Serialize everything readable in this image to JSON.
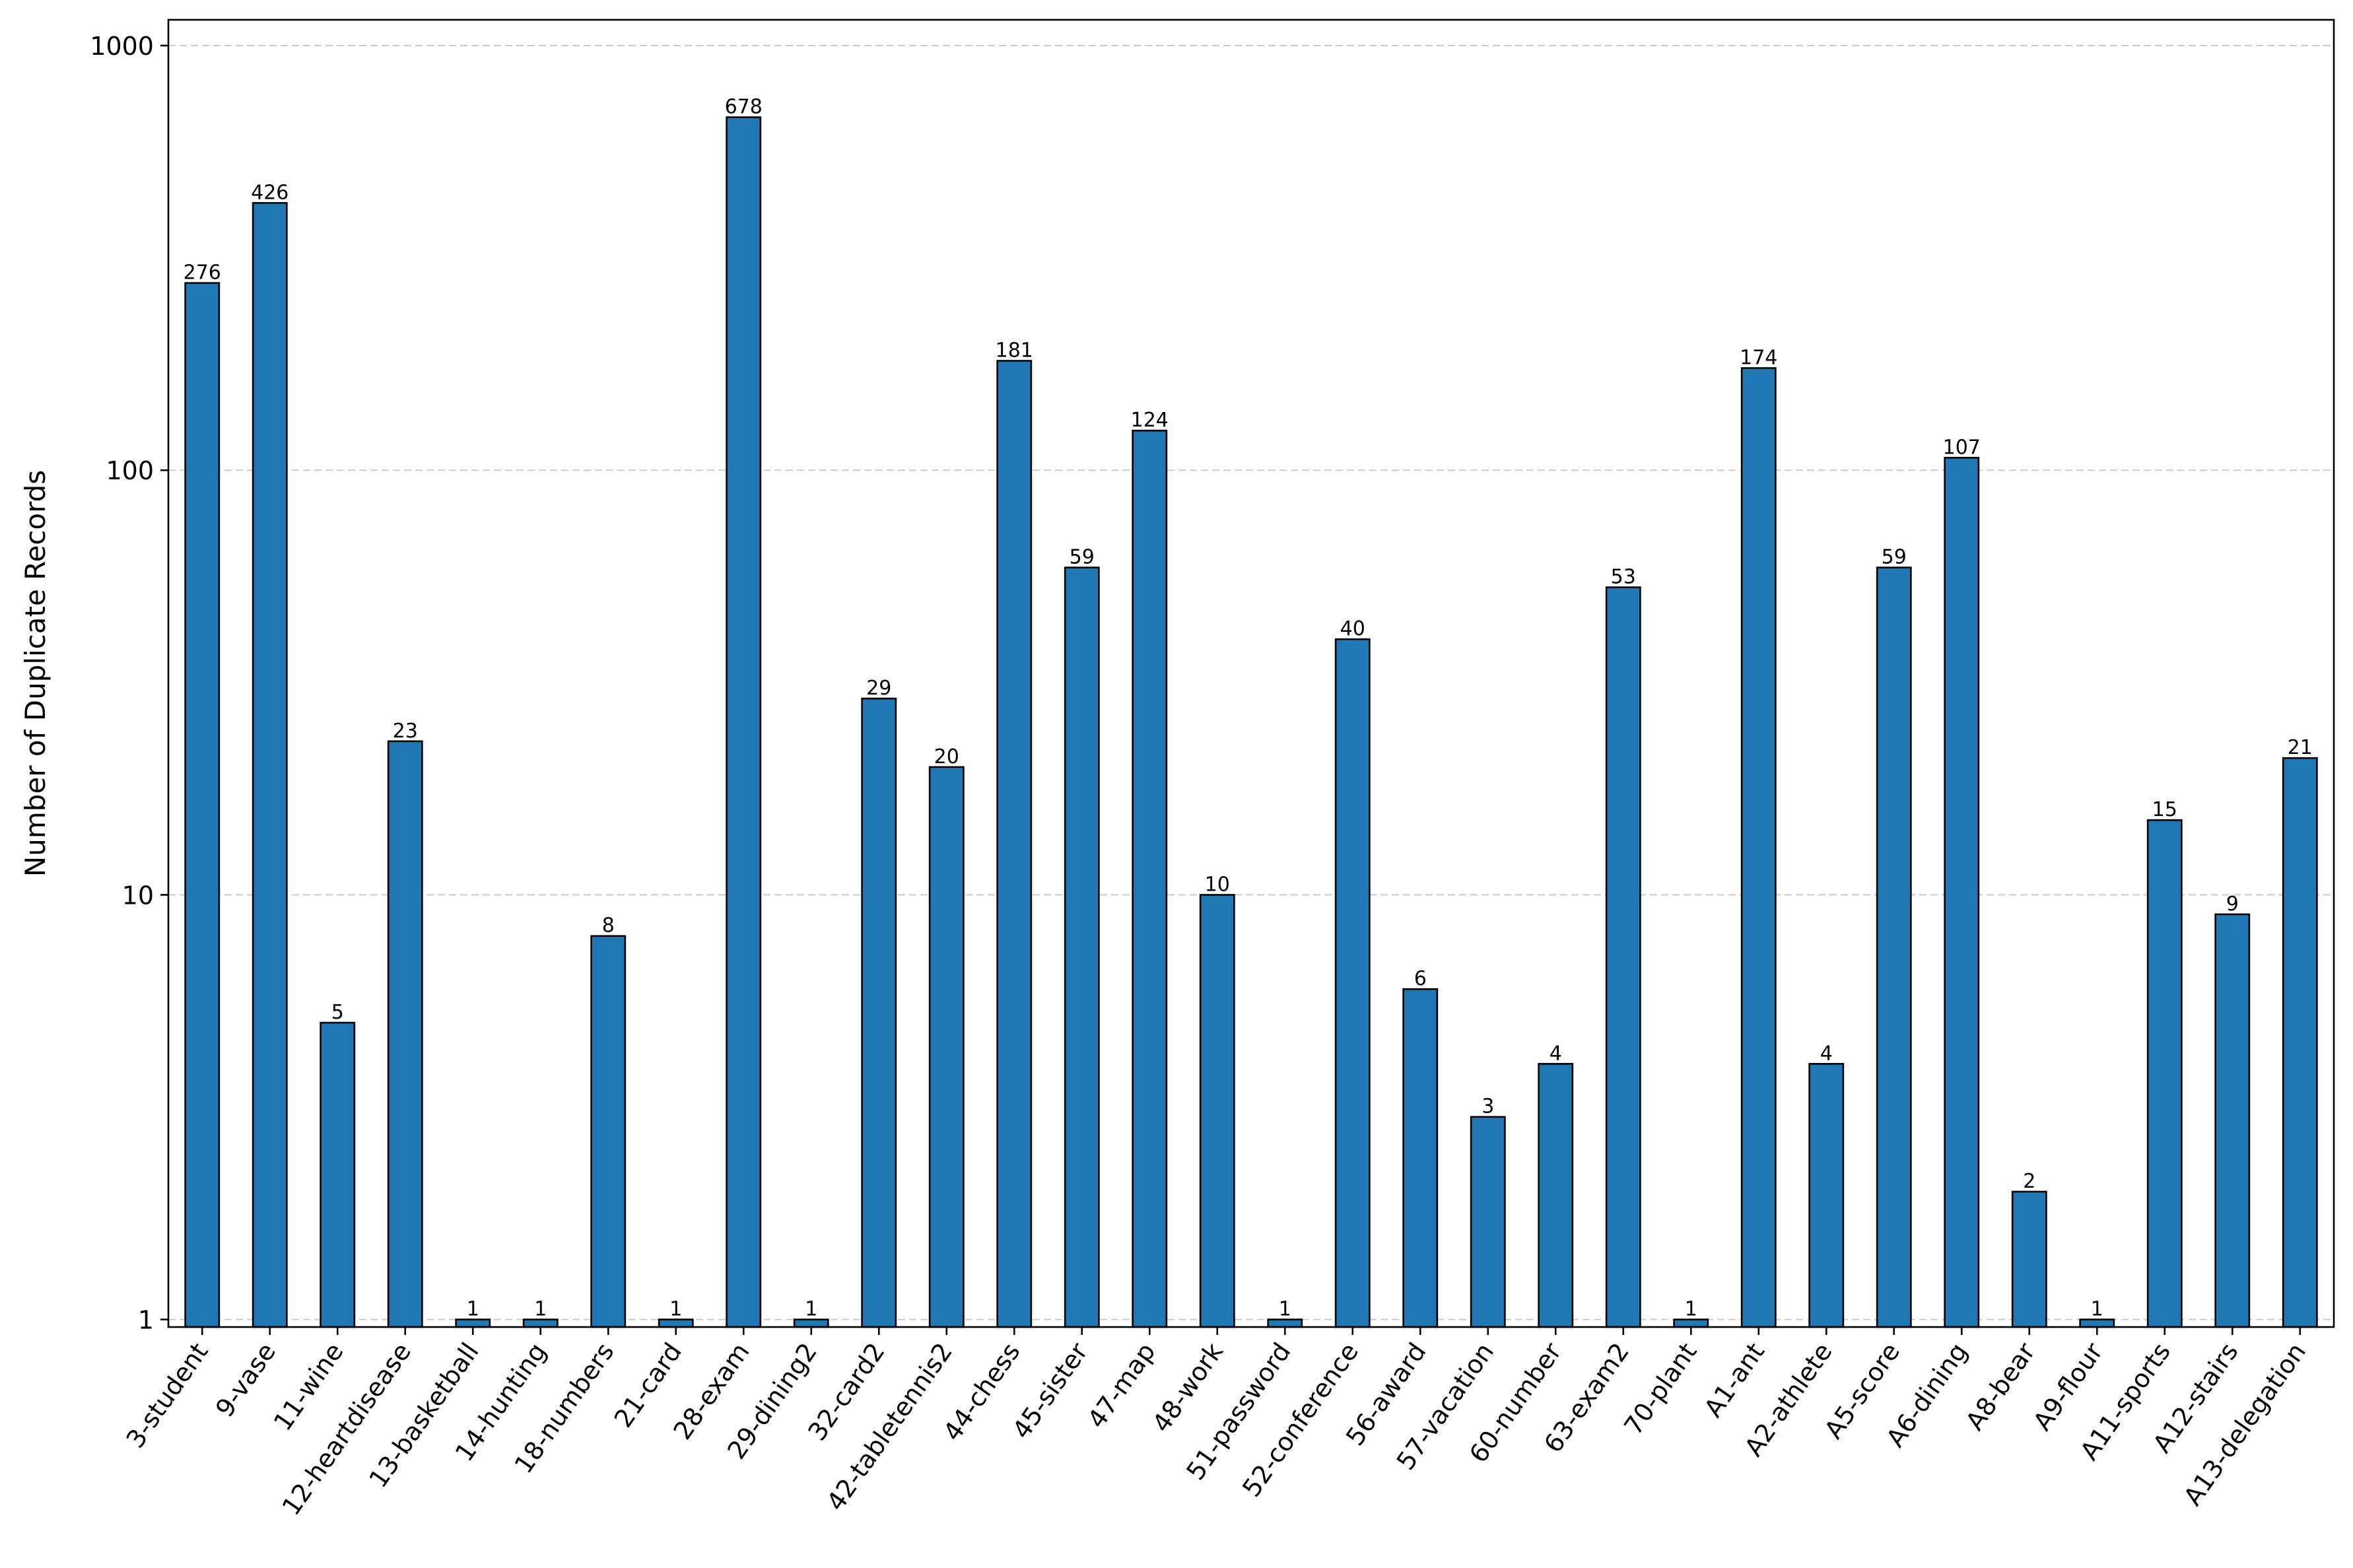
{
  "chart_data": {
    "type": "bar",
    "title": "",
    "xlabel": "",
    "ylabel": "Number of Duplicate Records",
    "yscale": "log",
    "ylim": [
      0.96,
      1150
    ],
    "yticks": [
      1,
      10,
      100,
      1000
    ],
    "ytick_labels": [
      "1",
      "10",
      "100",
      "1000"
    ],
    "grid": "horizontal, dashed",
    "legend": "none",
    "bar_color": "#1f77b4",
    "edge_color": "#000000",
    "categories": [
      "3-student",
      "9-vase",
      "11-wine",
      "12-heartdisease",
      "13-basketball",
      "14-hunting",
      "18-numbers",
      "21-card",
      "28-exam",
      "29-dining2",
      "32-card2",
      "42-tabletennis2",
      "44-chess",
      "45-sister",
      "47-map",
      "48-work",
      "51-password",
      "52-conference",
      "56-award",
      "57-vacation",
      "60-number",
      "63-exam2",
      "70-plant",
      "A1-ant",
      "A2-athlete",
      "A5-score",
      "A6-dining",
      "A8-bear",
      "A9-flour",
      "A11-sports",
      "A12-stairs",
      "A13-delegation"
    ],
    "values": [
      276,
      426,
      5,
      23,
      1,
      1,
      8,
      1,
      678,
      1,
      29,
      20,
      181,
      59,
      124,
      10,
      1,
      40,
      6,
      3,
      4,
      53,
      1,
      174,
      4,
      59,
      107,
      2,
      1,
      15,
      9,
      21
    ],
    "data_labels": [
      "276",
      "426",
      "5",
      "23",
      "1",
      "1",
      "8",
      "1",
      "678",
      "1",
      "29",
      "20",
      "181",
      "59",
      "124",
      "10",
      "1",
      "40",
      "6",
      "3",
      "4",
      "53",
      "1",
      "174",
      "4",
      "59",
      "107",
      "2",
      "1",
      "15",
      "9",
      "21"
    ]
  }
}
